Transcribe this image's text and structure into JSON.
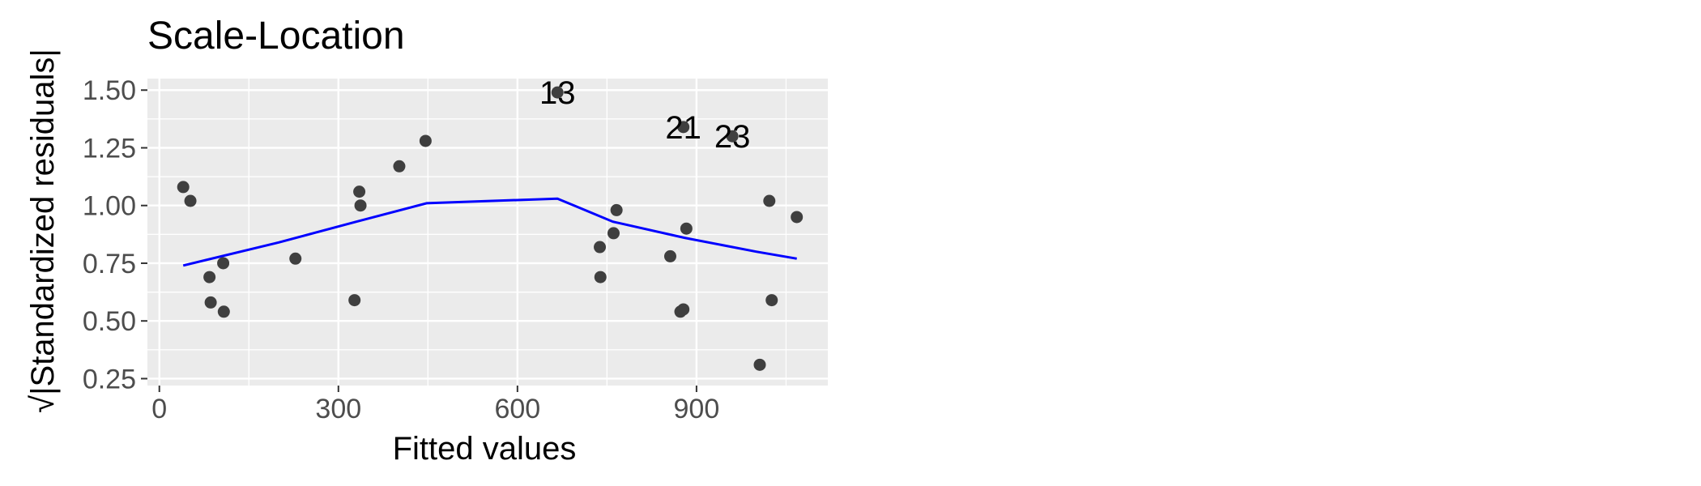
{
  "chart_data": {
    "type": "scatter",
    "title": "Scale-Location",
    "xlabel": "Fitted values",
    "ylabel": "√|Standardized residuals|",
    "xlim": [
      -20,
      1120
    ],
    "ylim": [
      0.22,
      1.55
    ],
    "x_ticks": [
      0,
      300,
      600,
      900
    ],
    "x_tick_labels": [
      "0",
      "300",
      "600",
      "900"
    ],
    "y_ticks": [
      0.25,
      0.5,
      0.75,
      1.0,
      1.25,
      1.5
    ],
    "y_tick_labels": [
      "0.25",
      "0.50",
      "0.75",
      "1.00",
      "1.25",
      "1.50"
    ],
    "grid": true,
    "colors": {
      "panel": "#ebebeb",
      "grid": "#ffffff",
      "points": "#3f3f3f",
      "smoother": "#0000ff"
    },
    "points": [
      {
        "x": 40,
        "y": 1.08
      },
      {
        "x": 52,
        "y": 1.02
      },
      {
        "x": 84,
        "y": 0.69
      },
      {
        "x": 86,
        "y": 0.58
      },
      {
        "x": 107,
        "y": 0.75
      },
      {
        "x": 108,
        "y": 0.54
      },
      {
        "x": 228,
        "y": 0.77
      },
      {
        "x": 327,
        "y": 0.59
      },
      {
        "x": 335,
        "y": 1.06
      },
      {
        "x": 337,
        "y": 1.0
      },
      {
        "x": 402,
        "y": 1.17
      },
      {
        "x": 446,
        "y": 1.28
      },
      {
        "x": 667,
        "y": 1.49,
        "label": "13"
      },
      {
        "x": 738,
        "y": 0.82
      },
      {
        "x": 739,
        "y": 0.69
      },
      {
        "x": 761,
        "y": 0.88
      },
      {
        "x": 766,
        "y": 0.98
      },
      {
        "x": 856,
        "y": 0.78
      },
      {
        "x": 873,
        "y": 0.54
      },
      {
        "x": 878,
        "y": 0.55
      },
      {
        "x": 878,
        "y": 1.34,
        "label": "21"
      },
      {
        "x": 883,
        "y": 0.9
      },
      {
        "x": 960,
        "y": 1.3,
        "label": "23"
      },
      {
        "x": 1006,
        "y": 0.31
      },
      {
        "x": 1022,
        "y": 1.02
      },
      {
        "x": 1026,
        "y": 0.59
      },
      {
        "x": 1068,
        "y": 0.95
      }
    ],
    "smoother": {
      "name": "",
      "x": [
        40,
        200,
        330,
        448,
        667,
        760,
        880,
        1000,
        1068
      ],
      "y": [
        0.74,
        0.84,
        0.93,
        1.01,
        1.03,
        0.93,
        0.86,
        0.8,
        0.77
      ]
    }
  }
}
